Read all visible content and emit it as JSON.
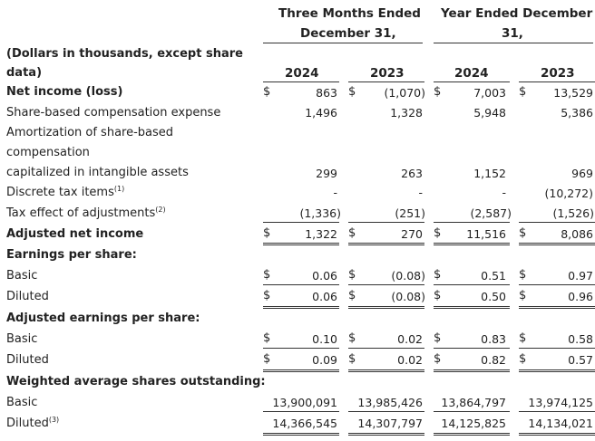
{
  "header": {
    "group1": [
      "Three Months Ended",
      "December 31,"
    ],
    "group2": [
      "Year Ended December",
      "31,"
    ],
    "note": [
      "(Dollars in thousands, except share",
      "data)"
    ],
    "years": [
      "2024",
      "2023",
      "2024",
      "2023"
    ]
  },
  "currency": "$",
  "rows": {
    "net_income": {
      "label": "Net income (loss)",
      "v": [
        "863",
        "(1,070)",
        "7,003",
        "13,529"
      ]
    },
    "sbc": {
      "label": "Share-based compensation expense",
      "v": [
        "1,496",
        "1,328",
        "5,948",
        "5,386"
      ]
    },
    "amort": {
      "label": [
        "Amortization of share-based",
        "compensation",
        "capitalized in intangible assets"
      ],
      "v": [
        "299",
        "263",
        "1,152",
        "969"
      ]
    },
    "discrete": {
      "label": "Discrete tax items",
      "sup": "(1)",
      "v": [
        "-",
        "-",
        "-",
        "(10,272)"
      ]
    },
    "tax_effect": {
      "label": "Tax effect of adjustments",
      "sup": "(2)",
      "v": [
        "(1,336)",
        "(251)",
        "(2,587)",
        "(1,526)"
      ]
    },
    "adj_net": {
      "label": "Adjusted net income",
      "v": [
        "1,322",
        "270",
        "11,516",
        "8,086"
      ]
    },
    "eps_head": {
      "label": "Earnings per share:"
    },
    "eps_basic": {
      "label": "Basic",
      "v": [
        "0.06",
        "(0.08)",
        "0.51",
        "0.97"
      ]
    },
    "eps_diluted": {
      "label": "Diluted",
      "v": [
        "0.06",
        "(0.08)",
        "0.50",
        "0.96"
      ]
    },
    "aeps_head": {
      "label": "Adjusted earnings per share:"
    },
    "aeps_basic": {
      "label": "Basic",
      "v": [
        "0.10",
        "0.02",
        "0.83",
        "0.58"
      ]
    },
    "aeps_diluted": {
      "label": "Diluted",
      "v": [
        "0.09",
        "0.02",
        "0.82",
        "0.57"
      ]
    },
    "wa_head": {
      "label": "Weighted average shares outstanding:"
    },
    "wa_basic": {
      "label": "Basic",
      "v": [
        "13,900,091",
        "13,985,426",
        "13,864,797",
        "13,974,125"
      ]
    },
    "wa_diluted": {
      "label": "Diluted",
      "sup": "(3)",
      "v": [
        "14,366,545",
        "14,307,797",
        "14,125,825",
        "14,134,021"
      ]
    }
  }
}
